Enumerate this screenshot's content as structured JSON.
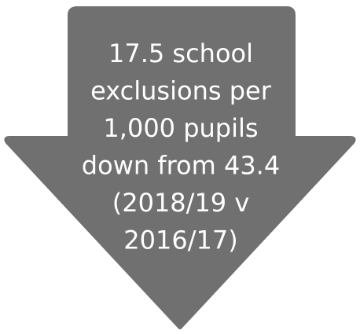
{
  "callout": {
    "lines": [
      "17.5 school",
      "exclusions per",
      "1,000 pupils",
      "down from 43.4",
      "(2018/19 v",
      "2016/17)"
    ]
  }
}
